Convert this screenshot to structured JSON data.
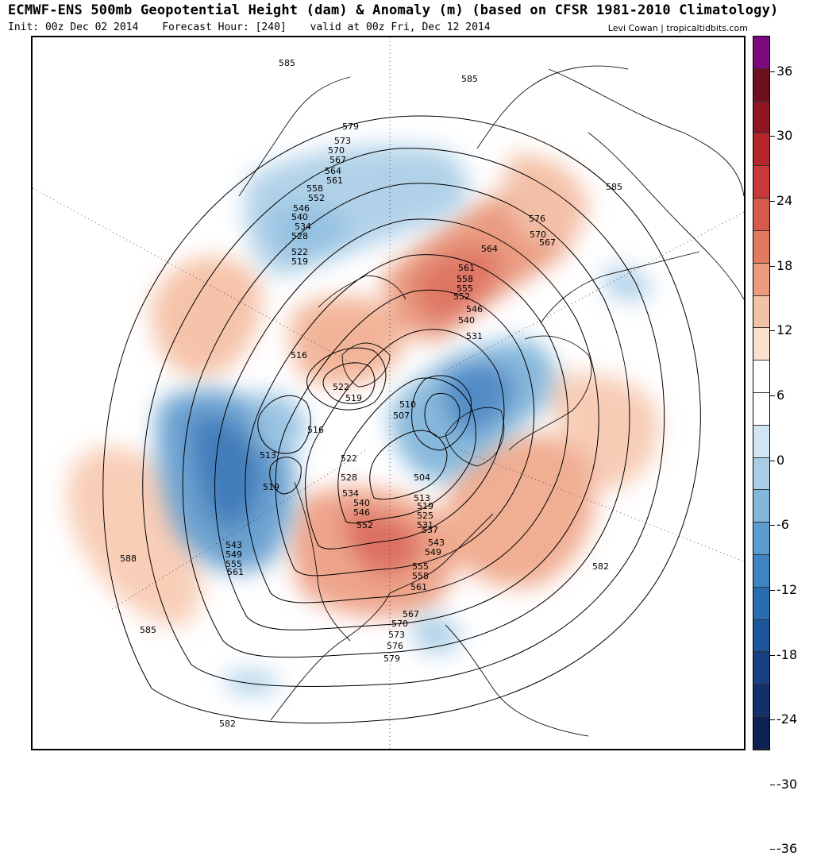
{
  "header": {
    "title": "ECMWF-ENS 500mb Geopotential Height (dam) & Anomaly (m) (based on CFSR 1981-2010 Climatology)",
    "init": "Init: 00z Dec 02 2014",
    "forecast_hour": "Forecast Hour: [240]",
    "valid": "valid at 00z Fri, Dec 12 2014",
    "credit": "Levi Cowan | tropicaltidbits.com"
  },
  "colorbar": {
    "tick_labels": [
      "36",
      "30",
      "24",
      "18",
      "12",
      "6",
      "0",
      "-6",
      "-12",
      "-18",
      "-24",
      "-30",
      "-36"
    ],
    "band_colors": [
      "#7d0a7d",
      "#6e0f1e",
      "#8e1524",
      "#b5262b",
      "#c9393a",
      "#d65a4c",
      "#e27a60",
      "#eb9c7f",
      "#f3c1a6",
      "#fae0cf",
      "#ffffff",
      "#ffffff",
      "#d0e4f1",
      "#a9cde6",
      "#82b6da",
      "#5b9cce",
      "#3d84c0",
      "#2a6cb0",
      "#1d559c",
      "#173f84",
      "#12306b",
      "#0d2154"
    ]
  },
  "contour_labels": {
    "ring_values": [
      "585",
      "579",
      "573",
      "570",
      "567",
      "564",
      "561",
      "558",
      "552",
      "546",
      "540",
      "534",
      "528",
      "522",
      "519"
    ],
    "na_values": [
      "522",
      "528",
      "534",
      "540",
      "546",
      "552",
      "555",
      "558",
      "561",
      "564",
      "567",
      "570",
      "573",
      "576",
      "579"
    ],
    "east_values": [
      "576",
      "570",
      "567",
      "564",
      "561",
      "558",
      "555",
      "552",
      "546",
      "540",
      "531"
    ],
    "east_na_values": [
      "513",
      "519",
      "525",
      "531",
      "537",
      "543",
      "549",
      "555",
      "558",
      "561"
    ],
    "west_values": [
      "543",
      "549",
      "555",
      "561"
    ],
    "center_values": [
      "516",
      "522",
      "519",
      "510",
      "507",
      "504",
      "513",
      "516",
      "519"
    ],
    "outer_values": [
      "585",
      "585",
      "585",
      "588",
      "582",
      "582",
      "585"
    ]
  }
}
